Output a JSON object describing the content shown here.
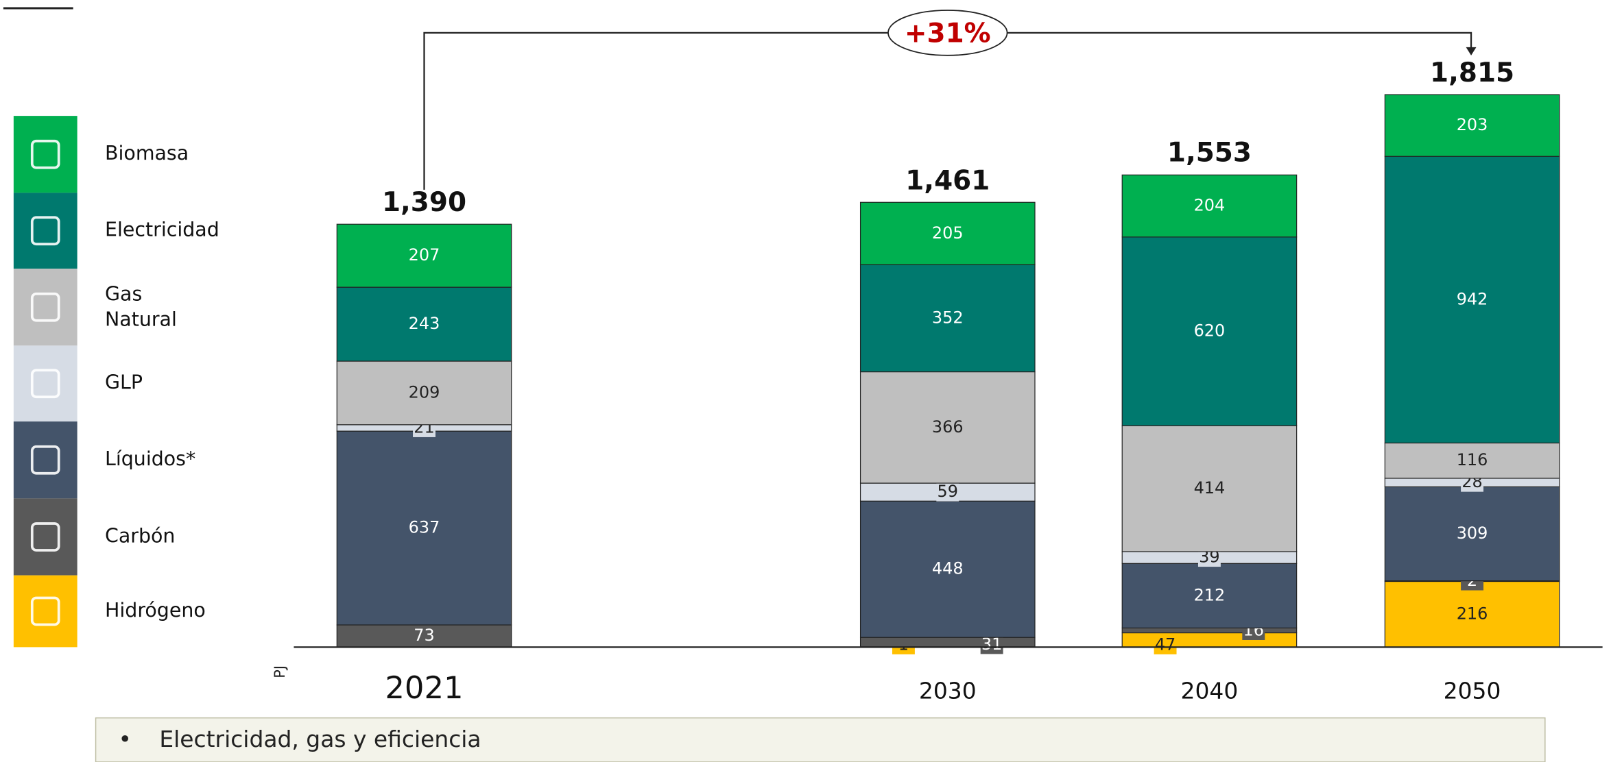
{
  "chart_data": {
    "type": "stacked_bar",
    "y_label": "PJ",
    "annotation": "+31%",
    "footer": "Electricidad, gas y eficiencia",
    "categories": [
      "2021",
      "2030",
      "2040",
      "2050"
    ],
    "ylim": [
      0,
      2100
    ],
    "series": [
      {
        "name": "Hidrógeno",
        "color": "#FFC000",
        "values": [
          null,
          1,
          47,
          216
        ]
      },
      {
        "name": "Carbón",
        "color": "#595959",
        "values": [
          73,
          31,
          16,
          2
        ]
      },
      {
        "name": "Líquidos*",
        "color": "#44546A",
        "values": [
          637,
          448,
          212,
          309
        ]
      },
      {
        "name": "GLP",
        "color": "#D6DCE5",
        "values": [
          21,
          59,
          39,
          28
        ]
      },
      {
        "name": "Gas Natural",
        "color": "#BFBFBF",
        "values": [
          209,
          366,
          414,
          116
        ]
      },
      {
        "name": "Electricidad",
        "color": "#00796E",
        "values": [
          243,
          352,
          620,
          942
        ]
      },
      {
        "name": "Biomasa",
        "color": "#00B050",
        "values": [
          207,
          205,
          204,
          203
        ]
      }
    ],
    "totals": [
      1390,
      1461,
      1553,
      1815
    ],
    "total_labels": [
      "1,390",
      "1,461",
      "1,553",
      "1,815"
    ]
  }
}
